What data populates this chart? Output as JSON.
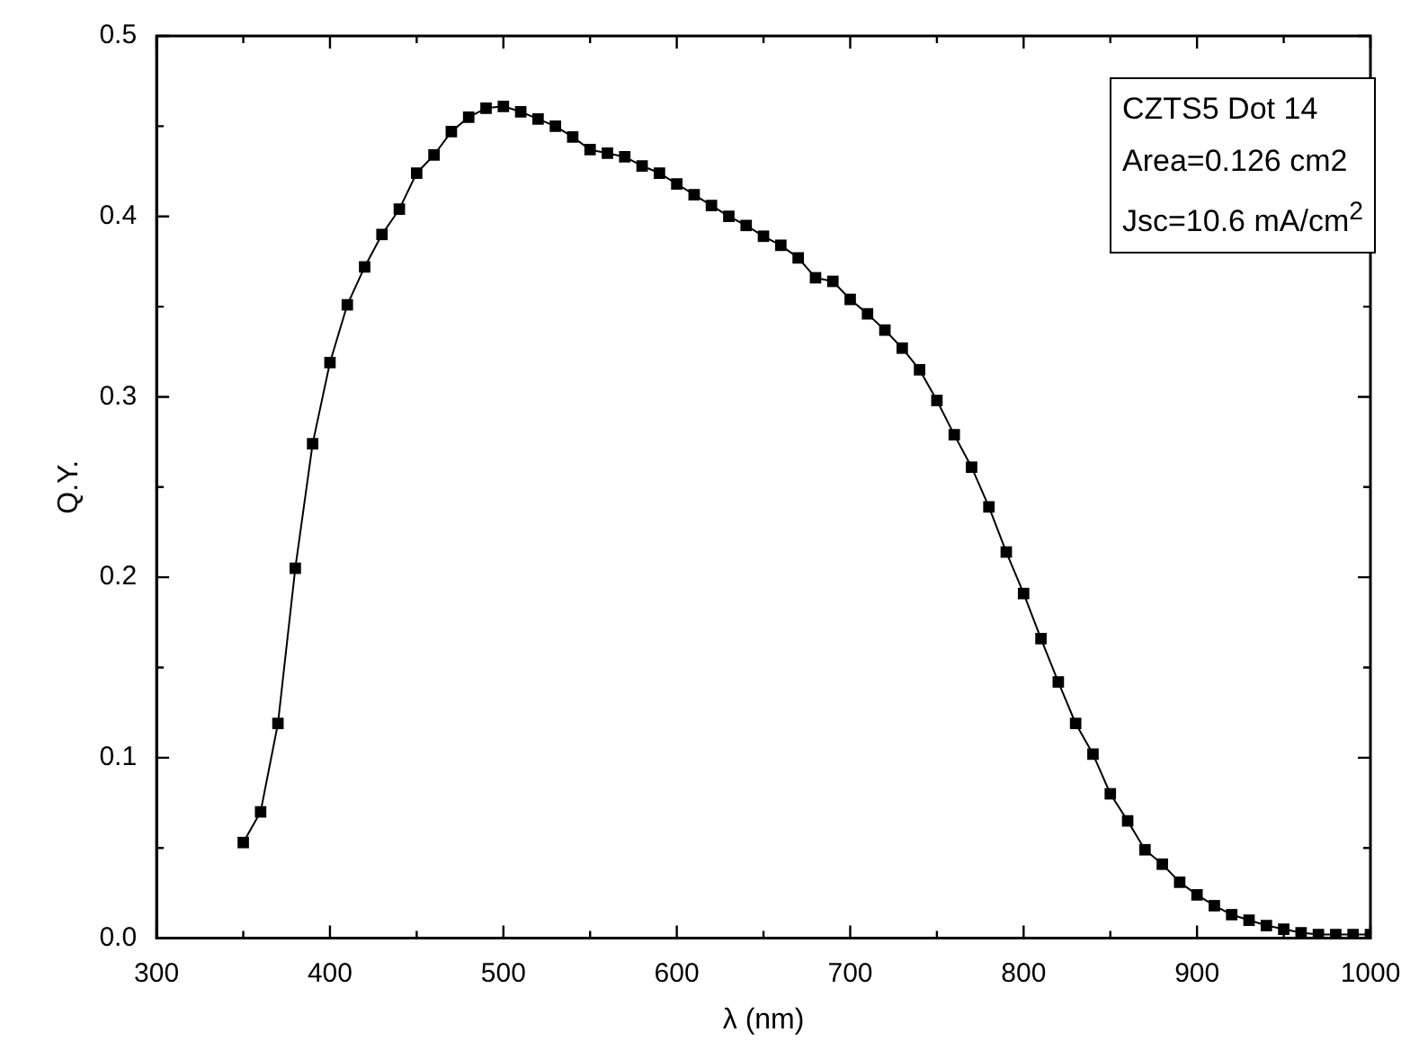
{
  "chart_data": {
    "type": "line",
    "xlabel": "λ (nm)",
    "ylabel": "Q.Y.",
    "annotations": [
      "CZTS5 Dot 14",
      "Area=0.126 cm2",
      "Jsc=10.6 mA/cm$^{2}$"
    ],
    "x": [
      350,
      360,
      370,
      380,
      390,
      400,
      410,
      420,
      430,
      440,
      450,
      460,
      470,
      480,
      490,
      500,
      510,
      520,
      530,
      540,
      550,
      560,
      570,
      580,
      590,
      600,
      610,
      620,
      630,
      640,
      650,
      660,
      670,
      680,
      690,
      700,
      710,
      720,
      730,
      740,
      750,
      760,
      770,
      780,
      790,
      800,
      810,
      820,
      830,
      840,
      850,
      860,
      870,
      880,
      890,
      900,
      910,
      920,
      930,
      940,
      950,
      960,
      970,
      980,
      990,
      1000
    ],
    "series": [
      {
        "color": "#000000",
        "values": [
          0.053,
          0.07,
          0.119,
          0.205,
          0.274,
          0.319,
          0.351,
          0.372,
          0.39,
          0.404,
          0.424,
          0.434,
          0.447,
          0.455,
          0.46,
          0.461,
          0.458,
          0.454,
          0.45,
          0.444,
          0.437,
          0.435,
          0.433,
          0.428,
          0.424,
          0.418,
          0.412,
          0.406,
          0.4,
          0.395,
          0.389,
          0.384,
          0.377,
          0.366,
          0.364,
          0.354,
          0.346,
          0.337,
          0.327,
          0.315,
          0.298,
          0.279,
          0.261,
          0.239,
          0.214,
          0.191,
          0.166,
          0.142,
          0.119,
          0.102,
          0.08,
          0.065,
          0.049,
          0.041,
          0.031,
          0.024,
          0.018,
          0.013,
          0.01,
          0.007,
          0.005,
          0.003,
          0.002,
          0.002,
          0.002,
          0.002
        ]
      }
    ],
    "xlim": [
      300,
      1000
    ],
    "xticks": [
      300,
      {
        "value": 350,
        "label": null
      },
      400,
      {
        "value": 450,
        "label": null
      },
      500,
      {
        "value": 550,
        "label": null
      },
      600,
      {
        "value": 650,
        "label": null
      },
      700,
      {
        "value": 750,
        "label": null
      },
      800,
      {
        "value": 850,
        "label": null
      },
      900,
      {
        "value": 950,
        "label": null
      },
      1000
    ],
    "ylim": [
      0,
      0.5
    ],
    "yticks": [
      {
        "value": 0,
        "label": "0.0"
      },
      {
        "value": 0.05,
        "label": null
      },
      0.1,
      {
        "value": 0.15,
        "label": null
      },
      0.2,
      {
        "value": 0.25,
        "label": null
      },
      0.3,
      {
        "value": 0.35,
        "label": null
      },
      0.4,
      {
        "value": 0.45,
        "label": null
      },
      0.5
    ],
    "marker": "square",
    "line_style": "solid",
    "grid": false,
    "legend": false
  }
}
